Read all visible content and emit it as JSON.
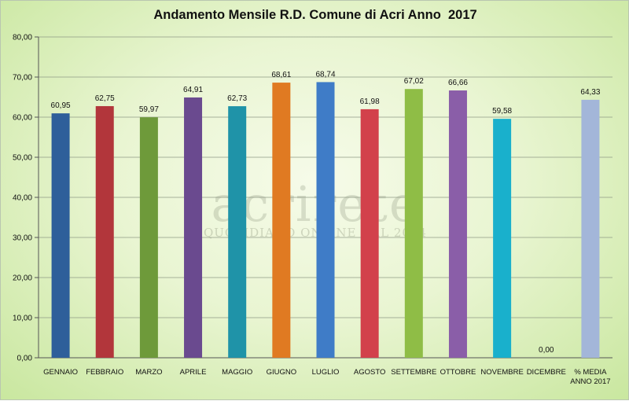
{
  "chart_data": {
    "type": "bar",
    "title": "Andamento Mensile R.D. Comune di Acri Anno  2017",
    "categories": [
      "GENNAIO",
      "FEBBRAIO",
      "MARZO",
      "APRILE",
      "MAGGIO",
      "GIUGNO",
      "LUGLIO",
      "AGOSTO",
      "SETTEMBRE",
      "OTTOBRE",
      "NOVEMBRE",
      "DICEMBRE",
      [
        "% MEDIA",
        "ANNO 2017"
      ]
    ],
    "values": [
      60.95,
      62.75,
      59.97,
      64.91,
      62.73,
      68.61,
      68.74,
      61.98,
      67.02,
      66.66,
      59.58,
      0.0,
      64.33
    ],
    "value_labels": [
      "60,95",
      "62,75",
      "59,97",
      "64,91",
      "62,73",
      "68,61",
      "68,74",
      "61,98",
      "67,02",
      "66,66",
      "59,58",
      "0,00",
      "64,33"
    ],
    "colors": [
      "#2e5f9a",
      "#b2363b",
      "#6e9a3a",
      "#6a4a8f",
      "#1f93a8",
      "#e07a22",
      "#3f7cc7",
      "#d2414b",
      "#8fbd46",
      "#8a5ea8",
      "#19b0cc",
      "#f0a068",
      "#a3b6d9"
    ],
    "ylim": [
      0,
      80
    ],
    "y_ticks": [
      "0,00",
      "10,00",
      "20,00",
      "30,00",
      "40,00",
      "50,00",
      "60,00",
      "70,00",
      "80,00"
    ],
    "grid": true,
    "legend": "none",
    "xlabel": "",
    "ylabel": ""
  },
  "watermark": {
    "brand": "acrirete",
    "tagline": "QUOTIDIANO ONLINE DAL 2004"
  }
}
